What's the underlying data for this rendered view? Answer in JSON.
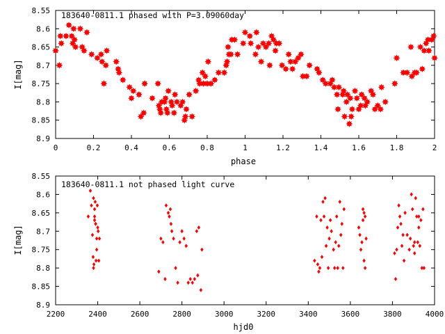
{
  "chart_data": [
    {
      "type": "scatter",
      "title": "183640-0811.1 phased with P=3.09060day",
      "xlabel": "phase",
      "ylabel": "I[mag]",
      "xlim": [
        0,
        2
      ],
      "ylim": [
        8.55,
        8.9
      ],
      "y_inverted": true,
      "marker": "star",
      "color": "#ff0000",
      "x_ticks": [
        "0",
        "0.2",
        "0.4",
        "0.6",
        "0.8",
        "1",
        "1.2",
        "1.4",
        "1.6",
        "1.8",
        "2"
      ],
      "y_ticks": [
        "8.55",
        "8.6",
        "8.65",
        "8.7",
        "8.75",
        "8.8",
        "8.85",
        "8.9"
      ],
      "grid": false,
      "points": [
        [
          0.0,
          8.66
        ],
        [
          0.02,
          8.7
        ],
        [
          0.025,
          8.62
        ],
        [
          0.03,
          8.64
        ],
        [
          0.055,
          8.62
        ],
        [
          0.07,
          8.59
        ],
        [
          0.085,
          8.62
        ],
        [
          0.09,
          8.64
        ],
        [
          0.095,
          8.6
        ],
        [
          0.1,
          8.63
        ],
        [
          0.105,
          8.65
        ],
        [
          0.13,
          8.6
        ],
        [
          0.14,
          8.65
        ],
        [
          0.15,
          8.66
        ],
        [
          0.165,
          8.61
        ],
        [
          0.19,
          8.67
        ],
        [
          0.22,
          8.68
        ],
        [
          0.24,
          8.67
        ],
        [
          0.245,
          8.69
        ],
        [
          0.255,
          8.75
        ],
        [
          0.265,
          8.7
        ],
        [
          0.27,
          8.66
        ],
        [
          0.32,
          8.69
        ],
        [
          0.33,
          8.71
        ],
        [
          0.335,
          8.72
        ],
        [
          0.355,
          8.74
        ],
        [
          0.39,
          8.76
        ],
        [
          0.4,
          8.79
        ],
        [
          0.41,
          8.77
        ],
        [
          0.44,
          8.78
        ],
        [
          0.45,
          8.84
        ],
        [
          0.465,
          8.83
        ],
        [
          0.47,
          8.75
        ],
        [
          0.51,
          8.79
        ],
        [
          0.54,
          8.75
        ],
        [
          0.545,
          8.81
        ],
        [
          0.55,
          8.82
        ],
        [
          0.555,
          8.83
        ],
        [
          0.56,
          8.8
        ],
        [
          0.575,
          8.8
        ],
        [
          0.58,
          8.79
        ],
        [
          0.585,
          8.82
        ],
        [
          0.59,
          8.83
        ],
        [
          0.595,
          8.77
        ],
        [
          0.61,
          8.8
        ],
        [
          0.615,
          8.81
        ],
        [
          0.625,
          8.83
        ],
        [
          0.63,
          8.78
        ],
        [
          0.64,
          8.8
        ],
        [
          0.66,
          8.81
        ],
        [
          0.67,
          8.8
        ],
        [
          0.68,
          8.85
        ],
        [
          0.685,
          8.84
        ],
        [
          0.69,
          8.82
        ],
        [
          0.705,
          8.78
        ],
        [
          0.72,
          8.84
        ],
        [
          0.74,
          8.77
        ],
        [
          0.755,
          8.74
        ],
        [
          0.76,
          8.75
        ],
        [
          0.775,
          8.72
        ],
        [
          0.78,
          8.75
        ],
        [
          0.79,
          8.73
        ],
        [
          0.8,
          8.75
        ],
        [
          0.805,
          8.69
        ],
        [
          0.82,
          8.75
        ],
        [
          0.84,
          8.74
        ],
        [
          0.86,
          8.72
        ],
        [
          0.89,
          8.72
        ],
        [
          0.9,
          8.7
        ],
        [
          0.905,
          8.69
        ],
        [
          0.91,
          8.65
        ],
        [
          0.915,
          8.67
        ],
        [
          0.925,
          8.67
        ],
        [
          0.93,
          8.63
        ],
        [
          0.945,
          8.63
        ],
        [
          0.96,
          8.67
        ],
        [
          0.99,
          8.64
        ],
        [
          1.0,
          8.61
        ],
        [
          1.025,
          8.62
        ],
        [
          1.03,
          8.64
        ],
        [
          1.055,
          8.67
        ],
        [
          1.06,
          8.61
        ],
        [
          1.07,
          8.65
        ],
        [
          1.085,
          8.69
        ],
        [
          1.095,
          8.64
        ],
        [
          1.11,
          8.65
        ],
        [
          1.125,
          8.64
        ],
        [
          1.13,
          8.7
        ],
        [
          1.14,
          8.62
        ],
        [
          1.15,
          8.63
        ],
        [
          1.16,
          8.66
        ],
        [
          1.165,
          8.64
        ],
        [
          1.18,
          8.64
        ],
        [
          1.195,
          8.7
        ],
        [
          1.215,
          8.71
        ],
        [
          1.23,
          8.67
        ],
        [
          1.24,
          8.69
        ],
        [
          1.25,
          8.71
        ],
        [
          1.265,
          8.69
        ],
        [
          1.28,
          8.68
        ],
        [
          1.295,
          8.67
        ],
        [
          1.305,
          8.73
        ],
        [
          1.325,
          8.73
        ],
        [
          1.34,
          8.7
        ],
        [
          1.38,
          8.71
        ],
        [
          1.39,
          8.72
        ],
        [
          1.41,
          8.74
        ],
        [
          1.425,
          8.75
        ],
        [
          1.45,
          8.75
        ],
        [
          1.46,
          8.74
        ],
        [
          1.47,
          8.76
        ],
        [
          1.485,
          8.78
        ],
        [
          1.49,
          8.82
        ],
        [
          1.495,
          8.76
        ],
        [
          1.515,
          8.78
        ],
        [
          1.52,
          8.77
        ],
        [
          1.525,
          8.84
        ],
        [
          1.535,
          8.8
        ],
        [
          1.54,
          8.78
        ],
        [
          1.55,
          8.86
        ],
        [
          1.555,
          8.79
        ],
        [
          1.56,
          8.84
        ],
        [
          1.565,
          8.82
        ],
        [
          1.58,
          8.77
        ],
        [
          1.59,
          8.79
        ],
        [
          1.6,
          8.82
        ],
        [
          1.61,
          8.81
        ],
        [
          1.615,
          8.78
        ],
        [
          1.63,
          8.79
        ],
        [
          1.635,
          8.81
        ],
        [
          1.645,
          8.8
        ],
        [
          1.665,
          8.77
        ],
        [
          1.675,
          8.78
        ],
        [
          1.685,
          8.82
        ],
        [
          1.7,
          8.81
        ],
        [
          1.715,
          8.82
        ],
        [
          1.72,
          8.76
        ],
        [
          1.74,
          8.8
        ],
        [
          1.79,
          8.75
        ],
        [
          1.8,
          8.68
        ],
        [
          1.835,
          8.72
        ],
        [
          1.855,
          8.72
        ],
        [
          1.875,
          8.65
        ],
        [
          1.88,
          8.73
        ],
        [
          1.895,
          8.72
        ],
        [
          1.905,
          8.72
        ],
        [
          1.925,
          8.65
        ],
        [
          1.935,
          8.71
        ],
        [
          1.945,
          8.66
        ],
        [
          1.955,
          8.64
        ],
        [
          1.965,
          8.63
        ],
        [
          1.97,
          8.66
        ],
        [
          1.985,
          8.63
        ],
        [
          1.995,
          8.62
        ],
        [
          2.0,
          8.68
        ]
      ]
    },
    {
      "type": "scatter",
      "title": "183640-0811.1 not phased light curve",
      "xlabel": "hjd0",
      "ylabel": "I[mag]",
      "xlim": [
        2200,
        4000
      ],
      "ylim": [
        8.55,
        8.9
      ],
      "y_inverted": true,
      "marker": "diamond",
      "color": "#ff0000",
      "x_ticks": [
        "2200",
        "2400",
        "2600",
        "2800",
        "3000",
        "3200",
        "3400",
        "3600",
        "3800",
        "4000"
      ],
      "y_ticks": [
        "8.55",
        "8.6",
        "8.65",
        "8.7",
        "8.75",
        "8.8",
        "8.85",
        "8.9"
      ],
      "grid": false,
      "points": [
        [
          2355,
          8.66
        ],
        [
          2365,
          8.59
        ],
        [
          2370,
          8.63
        ],
        [
          2375,
          8.71
        ],
        [
          2378,
          8.77
        ],
        [
          2380,
          8.8
        ],
        [
          2382,
          8.79
        ],
        [
          2385,
          8.66
        ],
        [
          2385,
          8.64
        ],
        [
          2388,
          8.62
        ],
        [
          2390,
          8.68
        ],
        [
          2392,
          8.78
        ],
        [
          2395,
          8.75
        ],
        [
          2398,
          8.63
        ],
        [
          2400,
          8.69
        ],
        [
          2402,
          8.7
        ],
        [
          2405,
          8.78
        ],
        [
          2408,
          8.72
        ],
        [
          2380,
          8.61
        ],
        [
          2390,
          8.68
        ],
        [
          2395,
          8.72
        ],
        [
          2385,
          8.67
        ],
        [
          2690,
          8.81
        ],
        [
          2700,
          8.72
        ],
        [
          2710,
          8.73
        ],
        [
          2720,
          8.83
        ],
        [
          2725,
          8.63
        ],
        [
          2735,
          8.65
        ],
        [
          2740,
          8.66
        ],
        [
          2745,
          8.64
        ],
        [
          2748,
          8.68
        ],
        [
          2752,
          8.7
        ],
        [
          2760,
          8.72
        ],
        [
          2770,
          8.8
        ],
        [
          2780,
          8.84
        ],
        [
          2790,
          8.73
        ],
        [
          2800,
          8.7
        ],
        [
          2810,
          8.72
        ],
        [
          2820,
          8.74
        ],
        [
          2830,
          8.84
        ],
        [
          2840,
          8.83
        ],
        [
          2850,
          8.84
        ],
        [
          2860,
          8.83
        ],
        [
          2870,
          8.7
        ],
        [
          2875,
          8.82
        ],
        [
          2880,
          8.69
        ],
        [
          2890,
          8.86
        ],
        [
          2895,
          8.75
        ],
        [
          3430,
          8.78
        ],
        [
          3440,
          8.66
        ],
        [
          3445,
          8.79
        ],
        [
          3450,
          8.81
        ],
        [
          3455,
          8.8
        ],
        [
          3460,
          8.67
        ],
        [
          3465,
          8.77
        ],
        [
          3470,
          8.62
        ],
        [
          3475,
          8.66
        ],
        [
          3480,
          8.61
        ],
        [
          3485,
          8.74
        ],
        [
          3490,
          8.69
        ],
        [
          3495,
          8.8
        ],
        [
          3500,
          8.72
        ],
        [
          3505,
          8.67
        ],
        [
          3510,
          8.7
        ],
        [
          3520,
          8.75
        ],
        [
          3525,
          8.8
        ],
        [
          3530,
          8.73
        ],
        [
          3535,
          8.66
        ],
        [
          3540,
          8.8
        ],
        [
          3545,
          8.74
        ],
        [
          3550,
          8.62
        ],
        [
          3555,
          8.71
        ],
        [
          3560,
          8.68
        ],
        [
          3565,
          8.8
        ],
        [
          3570,
          8.64
        ],
        [
          3640,
          8.69
        ],
        [
          3645,
          8.71
        ],
        [
          3650,
          8.75
        ],
        [
          3655,
          8.73
        ],
        [
          3660,
          8.67
        ],
        [
          3665,
          8.78
        ],
        [
          3670,
          8.8
        ],
        [
          3660,
          8.64
        ],
        [
          3665,
          8.65
        ],
        [
          3670,
          8.66
        ],
        [
          3675,
          8.72
        ],
        [
          3810,
          8.76
        ],
        [
          3815,
          8.83
        ],
        [
          3820,
          8.75
        ],
        [
          3825,
          8.69
        ],
        [
          3830,
          8.63
        ],
        [
          3835,
          8.66
        ],
        [
          3840,
          8.68
        ],
        [
          3845,
          8.74
        ],
        [
          3850,
          8.71
        ],
        [
          3855,
          8.78
        ],
        [
          3860,
          8.65
        ],
        [
          3870,
          8.71
        ],
        [
          3880,
          8.75
        ],
        [
          3885,
          8.72
        ],
        [
          3890,
          8.6
        ],
        [
          3895,
          8.64
        ],
        [
          3900,
          8.74
        ],
        [
          3905,
          8.76
        ],
        [
          3910,
          8.61
        ],
        [
          3915,
          8.66
        ],
        [
          3920,
          8.73
        ],
        [
          3925,
          8.69
        ],
        [
          3930,
          8.74
        ],
        [
          3935,
          8.67
        ],
        [
          3940,
          8.8
        ],
        [
          3945,
          8.64
        ],
        [
          3950,
          8.8
        ],
        [
          3905,
          8.73
        ],
        [
          3925,
          8.66
        ]
      ]
    }
  ]
}
